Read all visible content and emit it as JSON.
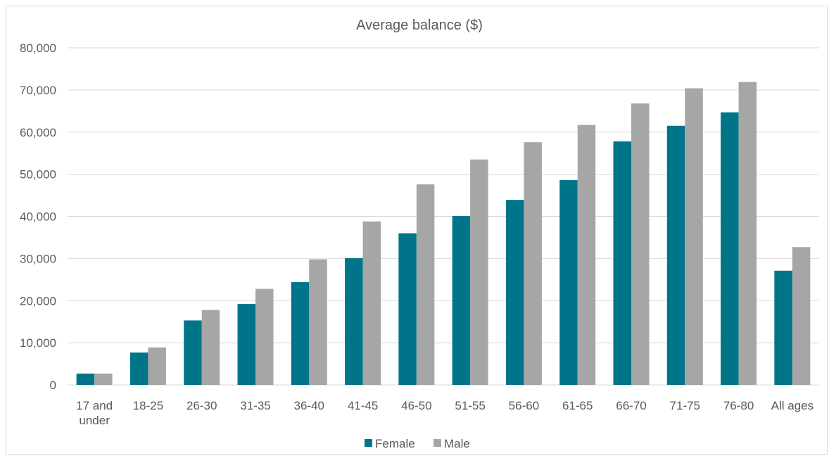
{
  "chart_data": {
    "type": "bar",
    "title": "Average balance ($)",
    "xlabel": "",
    "ylabel": "",
    "ylim": [
      0,
      80000
    ],
    "yticks": [
      "0",
      "10,000",
      "20,000",
      "30,000",
      "40,000",
      "50,000",
      "60,000",
      "70,000",
      "80,000"
    ],
    "grid": true,
    "legend_position": "bottom",
    "categories": [
      [
        "17 and",
        "under"
      ],
      [
        "18-25"
      ],
      [
        "26-30"
      ],
      [
        "31-35"
      ],
      [
        "36-40"
      ],
      [
        "41-45"
      ],
      [
        "46-50"
      ],
      [
        "51-55"
      ],
      [
        "56-60"
      ],
      [
        "61-65"
      ],
      [
        "66-70"
      ],
      [
        "71-75"
      ],
      [
        "76-80"
      ],
      [
        "All ages"
      ]
    ],
    "series": [
      {
        "name": "Female",
        "color": "#00758a",
        "values": [
          2700,
          7700,
          15300,
          19200,
          24400,
          30100,
          36000,
          40100,
          43900,
          48600,
          57800,
          61500,
          64700,
          27100
        ]
      },
      {
        "name": "Male",
        "color": "#a6a6a6",
        "values": [
          2700,
          8900,
          17800,
          22800,
          29800,
          38800,
          47600,
          53500,
          57600,
          61700,
          66800,
          70400,
          71900,
          32700
        ]
      }
    ]
  }
}
